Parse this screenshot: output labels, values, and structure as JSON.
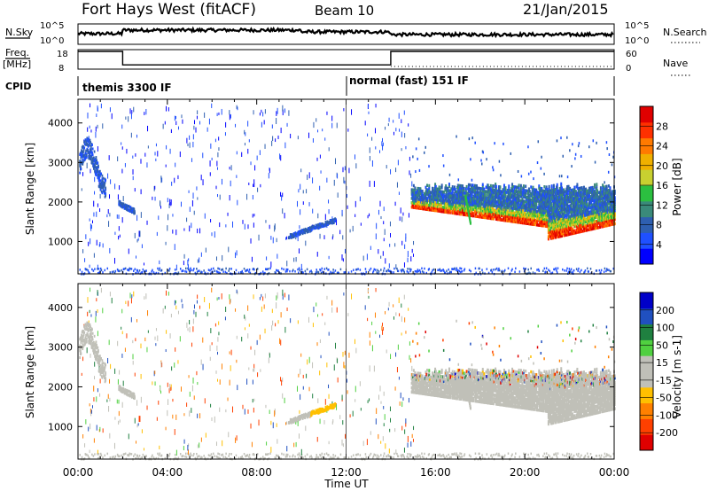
{
  "header": {
    "title": "Fort Hays West (fitACF)",
    "beam": "Beam 10",
    "date": "21/Jan/2015"
  },
  "strips": {
    "nsky_label": "N.Sky",
    "nsky_ticks": [
      "10^5",
      "10^0"
    ],
    "nsearch_label": "N.Search",
    "nsearch_ticks": [
      "10^5",
      "10^0"
    ],
    "freq_label": "Freq.",
    "freq_unit": "[MHz]",
    "freq_ticks": [
      "18",
      "8"
    ],
    "nave_label": "Nave",
    "nave_ticks": [
      "60",
      "0"
    ],
    "cpid_label": "CPID",
    "cpid_segments": [
      {
        "label": "themis 3300 IF",
        "start": 0,
        "end": 12
      },
      {
        "label": "normal (fast) 151 IF",
        "start": 12,
        "end": 24
      }
    ],
    "freq_steps": [
      {
        "start": 0,
        "end": 2,
        "value": 18
      },
      {
        "start": 2,
        "end": 14,
        "value": 10
      },
      {
        "start": 14,
        "end": 24,
        "value": 18
      }
    ]
  },
  "chart_data": [
    {
      "type": "heatmap",
      "title": "",
      "ylabel": "Slant Range [km]",
      "ylim": [
        180,
        4600
      ],
      "yticks": [
        "4000",
        "3000",
        "2000",
        "1000"
      ],
      "xlim": [
        0,
        24
      ],
      "colorbar": {
        "label": "Power [dB]",
        "ticks": [
          "28",
          "24",
          "20",
          "16",
          "12",
          "8",
          "4"
        ],
        "range": [
          0,
          30
        ],
        "colors": [
          "#0000ff",
          "#1f50ff",
          "#2e5fb0",
          "#3a8a7a",
          "#2bbf40",
          "#c8d030",
          "#f0b000",
          "#ff7a00",
          "#ff3000",
          "#e00000"
        ]
      },
      "features": [
        {
          "name": "early arc",
          "t": [
            0.1,
            1.2
          ],
          "range": [
            2400,
            3600
          ],
          "value": 6
        },
        {
          "name": "echo 1",
          "t": [
            1.8,
            2.5
          ],
          "range": [
            1800,
            2200
          ],
          "value": 5
        },
        {
          "name": "echo 2",
          "t": [
            9.4,
            11.5
          ],
          "range": [
            1100,
            1500
          ],
          "value": 5
        },
        {
          "name": "evening band",
          "t": [
            14.9,
            24
          ],
          "range": [
            900,
            2300
          ],
          "value": 22
        }
      ]
    },
    {
      "type": "heatmap",
      "title": "",
      "ylabel": "Slant Range [km]",
      "ylim": [
        180,
        4600
      ],
      "yticks": [
        "4000",
        "3000",
        "2000",
        "1000"
      ],
      "xlim": [
        0,
        24
      ],
      "colorbar": {
        "label": "Velocity [m s-1]",
        "ticks": [
          "200",
          "100",
          "50",
          "15",
          "-15",
          "-50",
          "-100",
          "-200"
        ],
        "range": [
          -250,
          250
        ],
        "colors": [
          "#e00000",
          "#ff4000",
          "#ff8000",
          "#ffc000",
          "#c0c0b8",
          "#c0c0b8",
          "#50d040",
          "#1f8040",
          "#2050c0",
          "#0000c8"
        ]
      }
    }
  ],
  "xaxis": {
    "label": "Time UT",
    "ticks": [
      "00:00",
      "04:00",
      "08:00",
      "12:00",
      "16:00",
      "20:00",
      "00:00"
    ]
  }
}
